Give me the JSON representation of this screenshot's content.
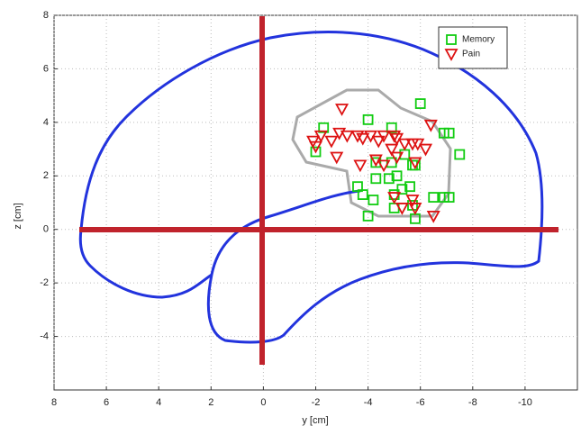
{
  "chart_data": {
    "type": "scatter",
    "xlabel": "y [cm]",
    "ylabel": "z [cm]",
    "xlim": [
      8,
      -12
    ],
    "ylim": [
      -6,
      8
    ],
    "xticks": [
      8,
      6,
      4,
      2,
      0,
      -2,
      -4,
      -6,
      -8,
      -10
    ],
    "yticks": [
      8,
      6,
      4,
      2,
      0,
      -2,
      -4
    ],
    "grid": true,
    "legend": "upper right",
    "series": [
      {
        "name": "Memory",
        "color": "#11cc11",
        "marker": "square",
        "x": [
          -6.0,
          -4.9,
          -4.0,
          -6.9,
          -7.1,
          -7.5,
          -2.3,
          -2.0,
          -4.3,
          -4.9,
          -5.7,
          -5.4,
          -4.3,
          -4.8,
          -5.1,
          -5.8,
          -3.6,
          -3.8,
          -4.2,
          -5.0,
          -5.3,
          -5.6,
          -4.0,
          -5.0,
          -5.7,
          -5.8,
          -6.5,
          -6.9,
          -7.1
        ],
        "y": [
          4.7,
          3.8,
          4.1,
          3.6,
          3.6,
          2.8,
          3.8,
          2.9,
          2.5,
          2.5,
          2.4,
          2.8,
          1.9,
          1.9,
          2.0,
          2.4,
          1.6,
          1.3,
          1.1,
          1.3,
          1.5,
          1.6,
          0.5,
          0.8,
          0.9,
          0.4,
          1.2,
          1.2,
          1.2
        ]
      },
      {
        "name": "Pain",
        "color": "#dd1111",
        "marker": "triangle-down",
        "x": [
          -3.0,
          -1.9,
          -2.2,
          -2.6,
          -2.9,
          -3.2,
          -3.6,
          -3.8,
          -4.1,
          -4.4,
          -4.6,
          -5.0,
          -5.1,
          -5.4,
          -5.7,
          -5.9,
          -6.4,
          -6.2,
          -2.0,
          -2.8,
          -3.7,
          -4.3,
          -4.9,
          -5.1,
          -5.8,
          -4.6,
          -5.0,
          -5.7,
          -5.8,
          -6.5,
          -5.3
        ],
        "y": [
          4.5,
          3.3,
          3.5,
          3.3,
          3.6,
          3.5,
          3.5,
          3.4,
          3.5,
          3.3,
          3.5,
          3.5,
          3.4,
          3.2,
          3.2,
          3.2,
          3.9,
          3.0,
          3.1,
          2.7,
          2.4,
          2.6,
          3.0,
          2.7,
          2.5,
          2.4,
          1.2,
          1.1,
          0.8,
          0.5,
          0.8
        ]
      }
    ]
  }
}
